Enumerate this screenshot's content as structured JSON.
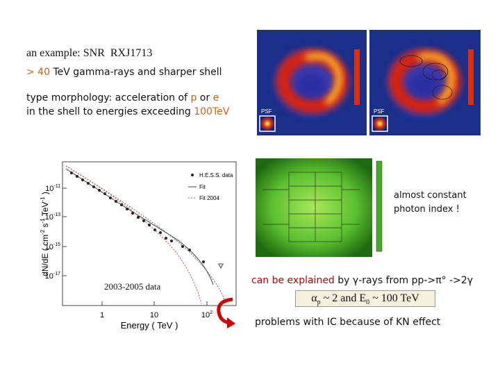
{
  "title": {
    "prefix": "an example: SNR",
    "name": "RXJ1713"
  },
  "description": {
    "line1": {
      "lead": "> 40",
      "rest": "TeV gamma-rays and  sharper shell"
    },
    "line2": {
      "text": "type morphology:  acceleration  of",
      "p": "p",
      "or": "or",
      "e": "e"
    },
    "line3": {
      "text": "in the shell to energies exceeding",
      "energy": "100TeV"
    }
  },
  "sky_maps": {
    "psf_left": "PSF",
    "psf_right": "PSF"
  },
  "spectrum_plot": {
    "legend": [
      "H.E.S.S. data",
      "Fit",
      "Fit 2004"
    ],
    "x_label": "Energy ( TeV )",
    "y_label": {
      "base": "dN/dE ( cm",
      "exp1": "-2",
      "mid1": " s",
      "exp2": "-1",
      "mid2": " TeV",
      "exp3": "-1",
      "end": " )"
    },
    "yticks": [
      {
        "base": "10",
        "exp": "-11"
      },
      {
        "base": "10",
        "exp": "-13"
      },
      {
        "base": "10",
        "exp": "-15"
      },
      {
        "base": "10",
        "exp": "-17"
      }
    ],
    "xticks": [
      {
        "base": "1",
        "exp": ""
      },
      {
        "base": "10",
        "exp": ""
      },
      {
        "base": "10",
        "exp": "2"
      }
    ],
    "data_note": "2003-2005 data"
  },
  "index_note": {
    "line1": "almost constant",
    "line2": "photon index !"
  },
  "explanation": {
    "lead": "can be explained",
    "rest": "by γ-rays from  pp->π° ->2γ"
  },
  "formula": {
    "alpha": "α",
    "alpha_sub": "p",
    "middle": " ~ 2 and E",
    "e_sub": "0",
    "end": " ~ 100 TeV"
  },
  "problems": "problems  with IC because of KN effect"
}
